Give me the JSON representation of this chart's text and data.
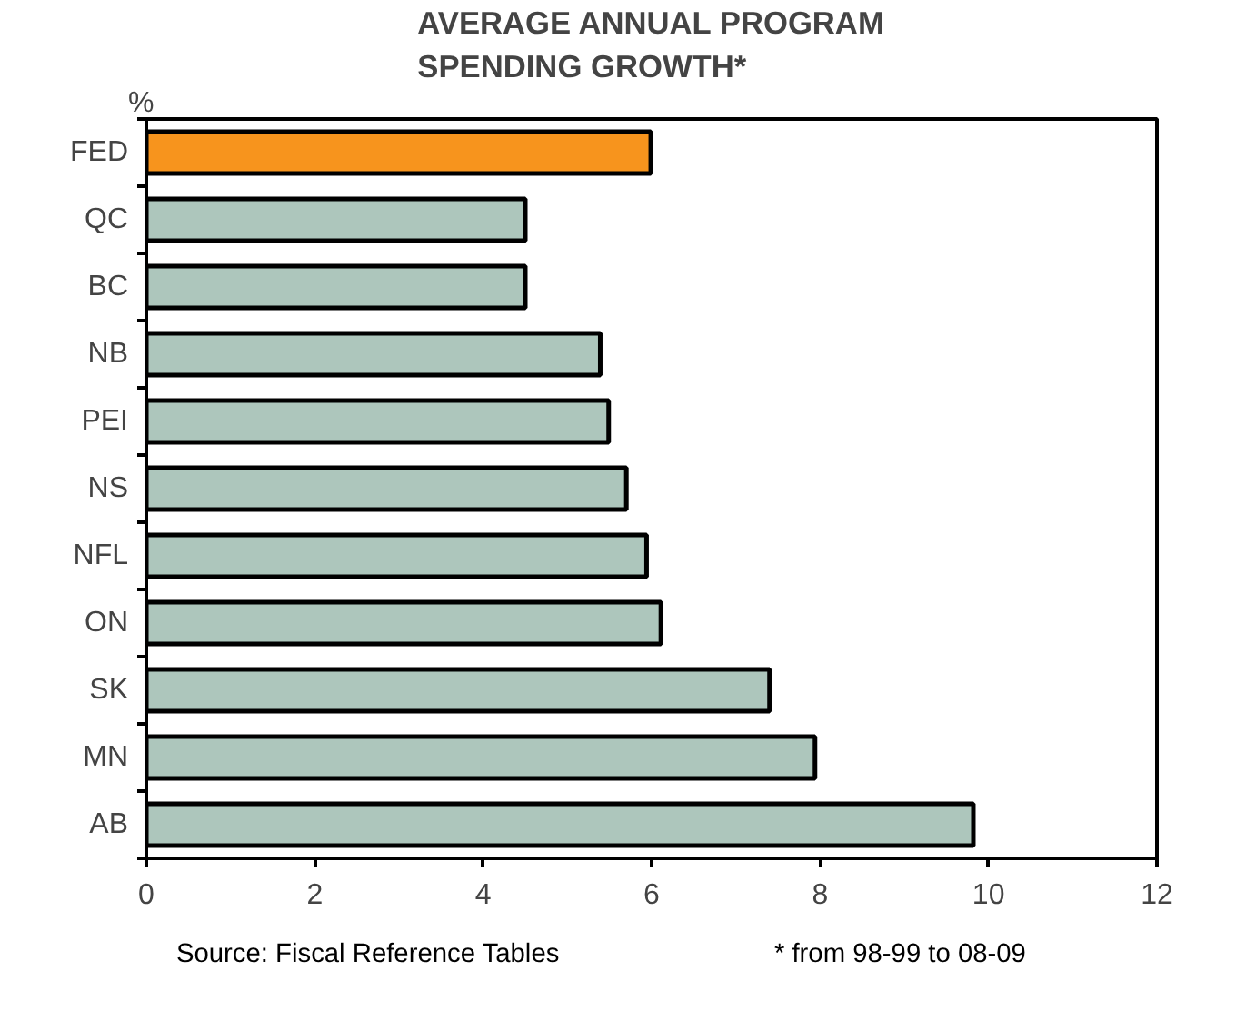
{
  "chart_data": {
    "type": "bar",
    "orientation": "horizontal",
    "title": "AVERAGE ANNUAL PROGRAM SPENDING GROWTH*",
    "ylabel": "%",
    "categories": [
      "FED",
      "QC",
      "BC",
      "NB",
      "PEI",
      "NS",
      "NFL",
      "ON",
      "SK",
      "MN",
      "AB"
    ],
    "values": [
      5.99,
      4.5,
      4.5,
      5.39,
      5.49,
      5.7,
      5.94,
      6.11,
      7.4,
      7.94,
      9.82
    ],
    "colors": [
      "#f7941d",
      "#adc6bc",
      "#adc6bc",
      "#adc6bc",
      "#adc6bc",
      "#adc6bc",
      "#adc6bc",
      "#adc6bc",
      "#adc6bc",
      "#adc6bc",
      "#adc6bc"
    ],
    "xlim": [
      0,
      12
    ],
    "xticks": [
      0,
      2,
      4,
      6,
      8,
      10,
      12
    ],
    "grid": false,
    "annotations": [
      "Source: Fiscal Reference Tables",
      "* from 98-99 to 08-09"
    ]
  }
}
